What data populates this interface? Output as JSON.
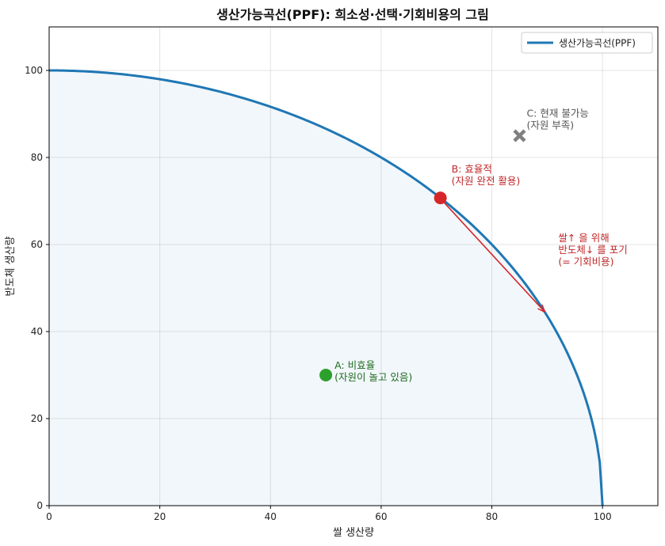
{
  "chart_data": {
    "type": "line",
    "title": "생산가능곡선(PPF): 희소성·선택·기회비용의 그림",
    "xlabel": "쌀 생산량",
    "ylabel": "반도체 생산량",
    "xlim": [
      0,
      110
    ],
    "ylim": [
      0,
      110
    ],
    "xticks": [
      0,
      20,
      40,
      60,
      80,
      100
    ],
    "yticks": [
      0,
      20,
      40,
      60,
      80,
      100
    ],
    "grid": true,
    "legend": {
      "position": "top-right",
      "entries": [
        "생산가능곡선(PPF)"
      ]
    },
    "series": [
      {
        "name": "생산가능곡선(PPF)",
        "color": "#1f77b4",
        "shape": "quarter-circle",
        "x_at_y0": 100,
        "y_at_x0": 100,
        "fill": true
      }
    ],
    "points": [
      {
        "id": "A",
        "x": 50,
        "y": 30,
        "color": "#2ca02c",
        "marker": "circle",
        "label_line1": "A: 비효율",
        "label_line2": "(자원이 놀고 있음)",
        "label_color": "#1e6b1e"
      },
      {
        "id": "B",
        "x": 70.7,
        "y": 70.7,
        "color": "#d62728",
        "marker": "circle",
        "label_line1": "B: 효율적",
        "label_line2": "(자원 완전 활용)",
        "label_color": "#c0282a"
      },
      {
        "id": "C",
        "x": 85,
        "y": 85,
        "color": "#808080",
        "marker": "x",
        "label_line1": "C: 현재 불가능",
        "label_line2": "(자원 부족)",
        "label_color": "#555555"
      }
    ],
    "arrow": {
      "from": [
        70.7,
        70.7
      ],
      "to": [
        89.5,
        44.6
      ],
      "color": "#d62728",
      "label_line1": "쌀↑ 을 위해",
      "label_line2": "반도체↓ 를 포기",
      "label_line3": "(= 기회비용)"
    }
  }
}
